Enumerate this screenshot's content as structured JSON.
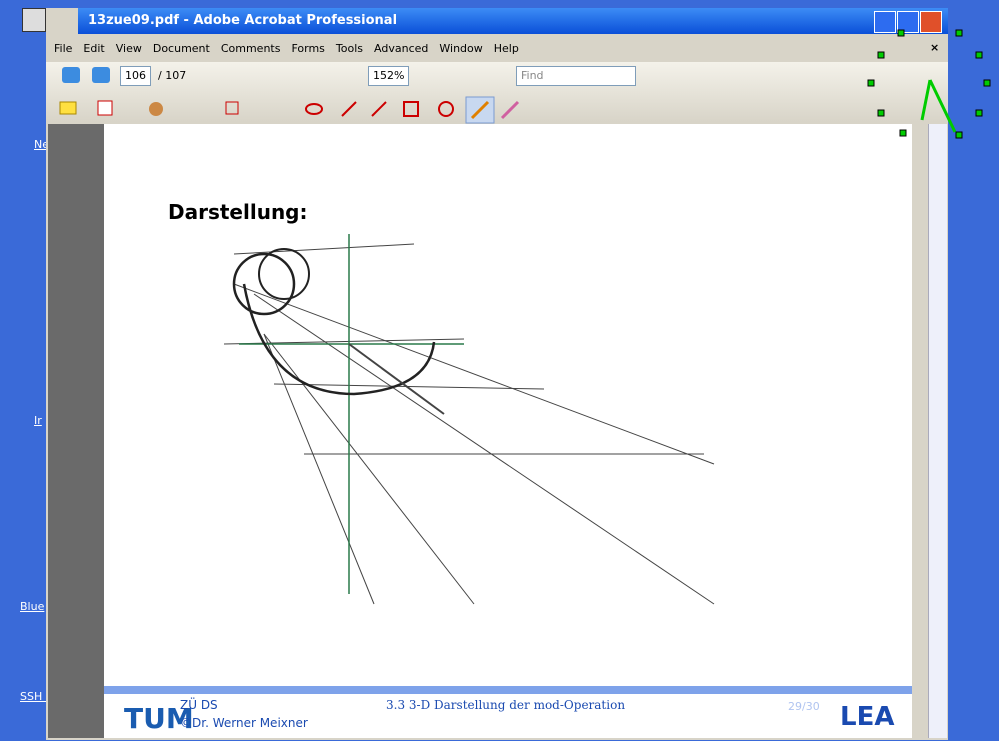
{
  "window": {
    "title": "13zue09.pdf - Adobe Acrobat Professional"
  },
  "menu": [
    "File",
    "Edit",
    "View",
    "Document",
    "Comments",
    "Forms",
    "Tools",
    "Advanced",
    "Window",
    "Help"
  ],
  "toolbar": {
    "page": "106",
    "page_total": "/ 107",
    "zoom": "152%",
    "find": "Find"
  },
  "desktop_labels": [
    "Ne",
    "Ir",
    "Blue",
    "SSH :"
  ],
  "slide": {
    "heading": "Darstellung:",
    "footer_course": "ZÜ DS",
    "footer_author": "©Dr. Werner Meixner",
    "footer_section": "3.3 3-D Darstellung der mod-Operation",
    "footer_page": "29/30",
    "logo": "LEA"
  }
}
